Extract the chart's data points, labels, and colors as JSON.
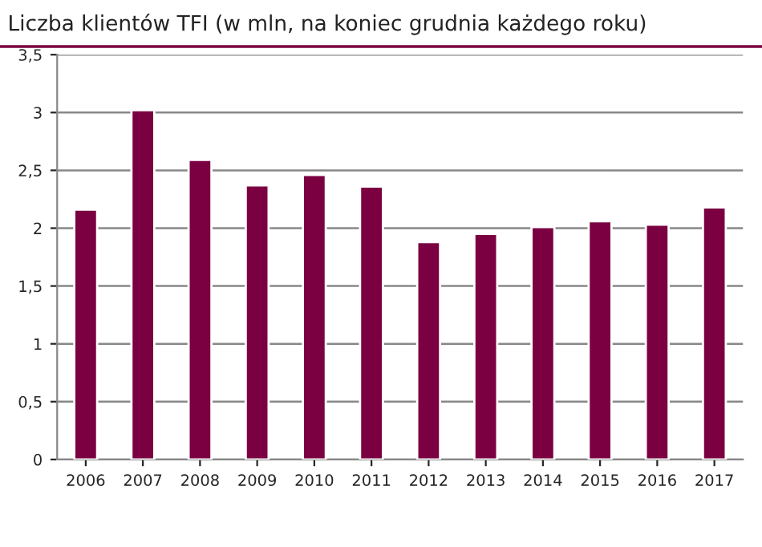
{
  "chart_data": {
    "type": "bar",
    "title": "Liczba klientów TFI (w mln, na koniec grudnia każdego roku)",
    "categories": [
      "2006",
      "2007",
      "2008",
      "2009",
      "2010",
      "2011",
      "2012",
      "2013",
      "2014",
      "2015",
      "2016",
      "2017"
    ],
    "values": [
      2.16,
      3.02,
      2.59,
      2.37,
      2.46,
      2.36,
      1.88,
      1.95,
      2.01,
      2.06,
      2.03,
      2.18
    ],
    "color": "#7b0041",
    "ylim": [
      0,
      3.5
    ],
    "yticks": [
      0,
      {
        "value": 0.5,
        "label": "0,5"
      },
      1,
      {
        "value": 1.5,
        "label": "1,5"
      },
      2,
      {
        "value": 2.5,
        "label": "2,5"
      },
      3,
      {
        "value": 3.5,
        "label": "3,5"
      }
    ],
    "grid": "y"
  }
}
